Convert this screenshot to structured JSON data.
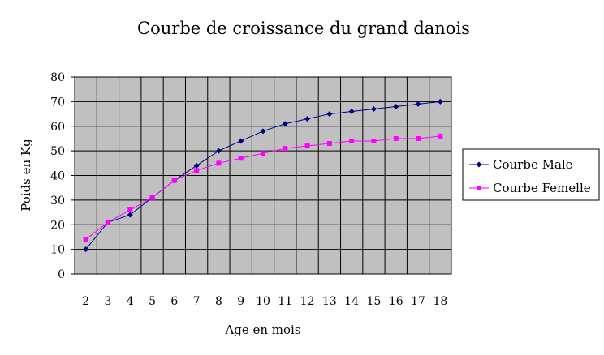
{
  "chart_data": {
    "type": "line",
    "title": "Courbe de croissance du grand danois",
    "xlabel": "Age en mois",
    "ylabel": "Poids en Kg",
    "categories": [
      "2",
      "3",
      "4",
      "5",
      "6",
      "7",
      "8",
      "9",
      "10",
      "11",
      "12",
      "13",
      "14",
      "15",
      "16",
      "17",
      "18"
    ],
    "ylim": [
      0,
      80
    ],
    "yticks": [
      "0",
      "10",
      "20",
      "30",
      "40",
      "50",
      "60",
      "70",
      "80"
    ],
    "grid": true,
    "legend_position": "right",
    "series": [
      {
        "name": "Courbe Male",
        "color": "#000080",
        "marker": "diamond",
        "values": [
          10,
          21,
          24,
          31,
          38,
          44,
          50,
          54,
          58,
          61,
          63,
          65,
          66,
          67,
          68,
          69,
          70
        ]
      },
      {
        "name": "Courbe Femelle",
        "color": "#ff00ff",
        "marker": "square",
        "values": [
          14,
          21,
          26,
          31,
          38,
          42,
          45,
          47,
          49,
          51,
          52,
          53,
          54,
          54,
          55,
          55,
          56
        ]
      }
    ],
    "plot_background": "#c0c0c0"
  }
}
